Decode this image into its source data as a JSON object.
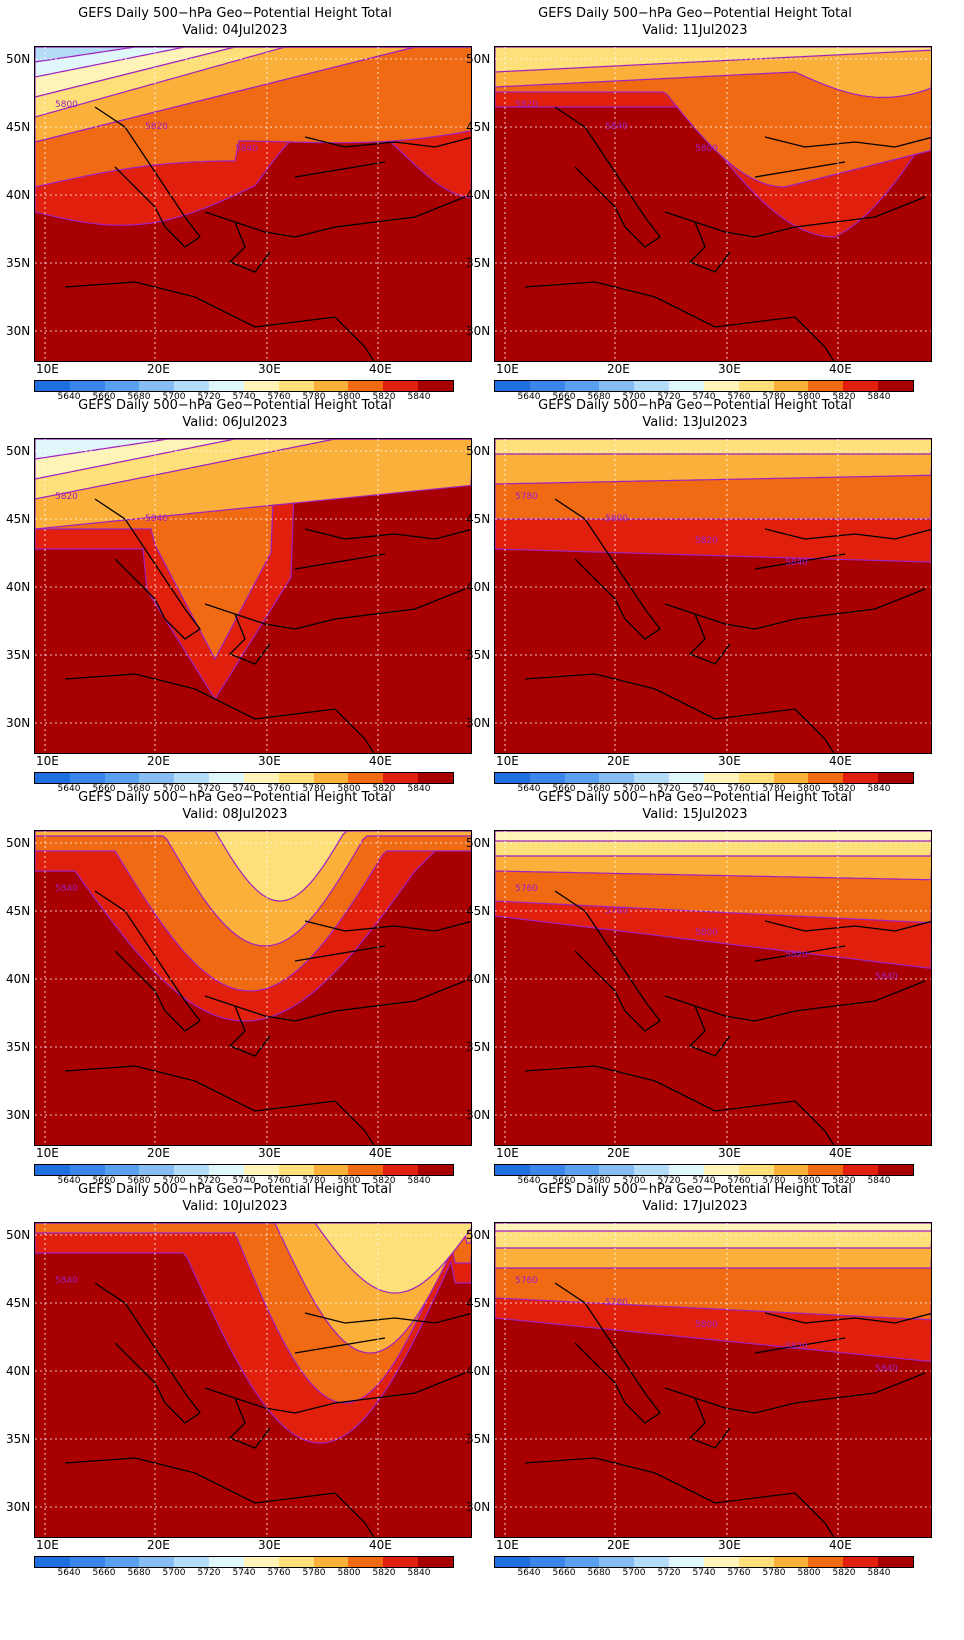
{
  "panels": [
    {
      "title": "GEFS Daily 500−hPa Geo−Potential Height Total",
      "valid": "Valid: 04Jul2023",
      "pattern": "ridge-north",
      "contour_labels": [
        "5800",
        "5820",
        "5840"
      ]
    },
    {
      "title": "GEFS Daily 500−hPa Geo−Potential Height Total",
      "valid": "Valid: 11Jul2023",
      "pattern": "trough-east",
      "contour_labels": [
        "5820",
        "5840",
        "5800"
      ]
    },
    {
      "title": "GEFS Daily 500−hPa Geo−Potential Height Total",
      "valid": "Valid: 06Jul2023",
      "pattern": "trough-central",
      "contour_labels": [
        "5820",
        "5840"
      ]
    },
    {
      "title": "GEFS Daily 500−hPa Geo−Potential Height Total",
      "valid": "Valid: 13Jul2023",
      "pattern": "zonal",
      "contour_labels": [
        "5780",
        "5800",
        "5820",
        "5840"
      ]
    },
    {
      "title": "GEFS Daily 500−hPa Geo−Potential Height Total",
      "valid": "Valid: 08Jul2023",
      "pattern": "trough-deep",
      "contour_labels": [
        "5840"
      ]
    },
    {
      "title": "GEFS Daily 500−hPa Geo−Potential Height Total",
      "valid": "Valid: 15Jul2023",
      "pattern": "zonal-2",
      "contour_labels": [
        "5760",
        "5780",
        "5800",
        "5820",
        "5840"
      ]
    },
    {
      "title": "GEFS Daily 500−hPa Geo−Potential Height Total",
      "valid": "Valid: 10Jul2023",
      "pattern": "trough-east-deep",
      "contour_labels": [
        "5840"
      ]
    },
    {
      "title": "GEFS Daily 500−hPa Geo−Potential Height Total",
      "valid": "Valid: 17Jul2023",
      "pattern": "zonal-3",
      "contour_labels": [
        "5760",
        "5780",
        "5800",
        "5820",
        "5840"
      ]
    }
  ],
  "lat_labels": [
    "50N",
    "45N",
    "40N",
    "35N",
    "30N"
  ],
  "lon_labels": [
    "10E",
    "20E",
    "30E",
    "40E"
  ],
  "colorbar": {
    "labels": [
      "5640",
      "5660",
      "5680",
      "5700",
      "5720",
      "5740",
      "5760",
      "5780",
      "5800",
      "5820",
      "5840"
    ],
    "colors": [
      "#1f6fe0",
      "#3a86ea",
      "#5aa0f0",
      "#86bdf3",
      "#b4dbf7",
      "#dff6fb",
      "#fff4b8",
      "#fde07a",
      "#fbb03b",
      "#f06a14",
      "#e0200c",
      "#a80000"
    ]
  },
  "colors": {
    "contour": "#a020c0",
    "border": "#000000"
  }
}
